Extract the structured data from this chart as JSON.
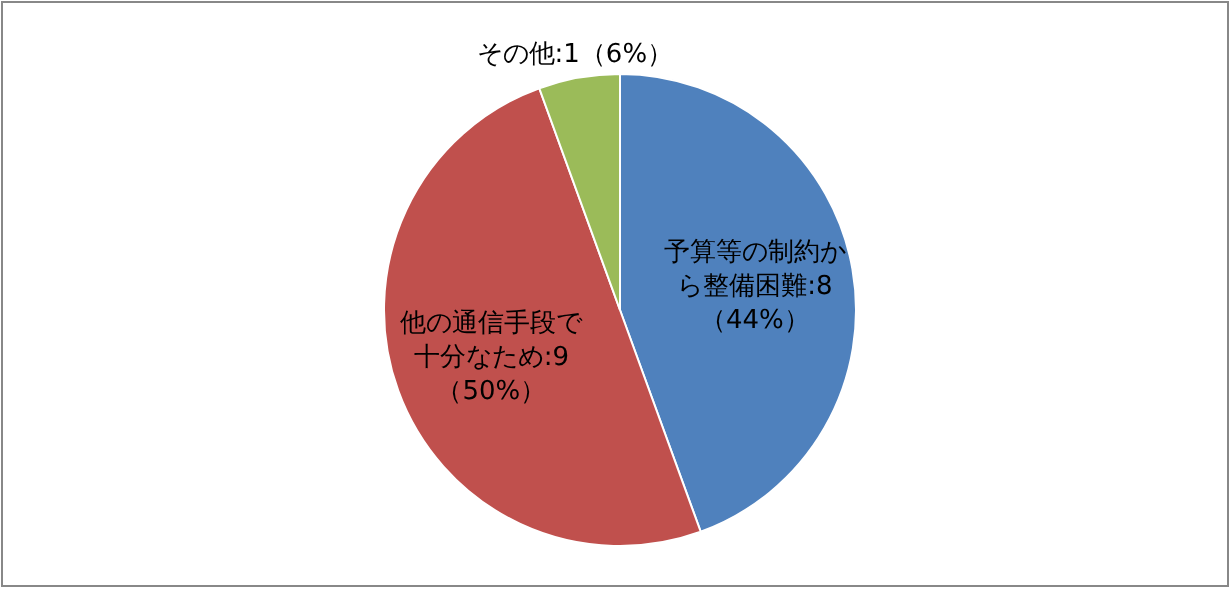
{
  "chart_data": {
    "type": "pie",
    "categories": [
      "予算等の制約から整備困難",
      "他の通信手段で十分なため",
      "その他"
    ],
    "values": [
      8,
      9,
      1
    ],
    "colors": [
      "#4f81bd",
      "#c0504d",
      "#9bbb59"
    ],
    "value_labels": [
      "8\n（44%）",
      "9\n（50%）",
      "1（6%）"
    ],
    "legend": false
  }
}
